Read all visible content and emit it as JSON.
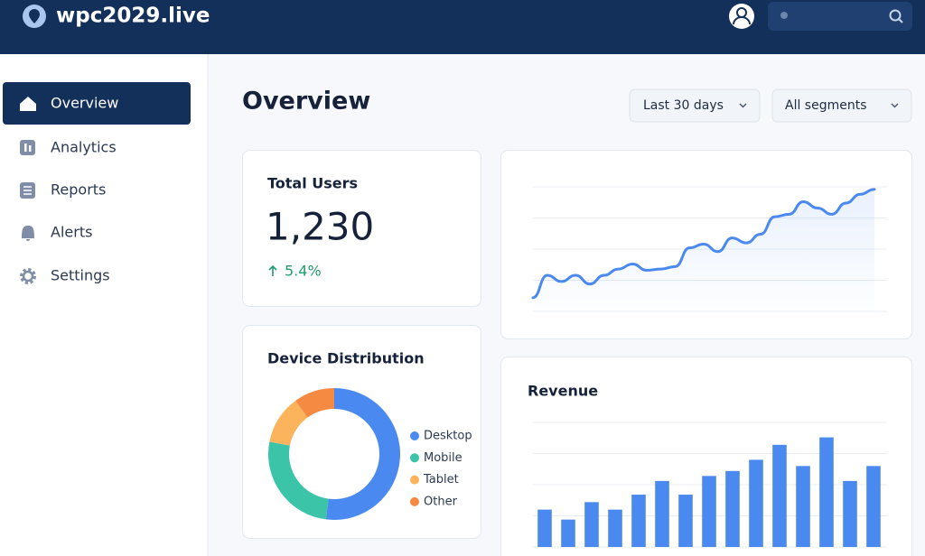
{
  "header": {
    "title": "wpc2029.live"
  },
  "nav": {
    "items": [
      {
        "label": "Overview"
      },
      {
        "label": "Analytics"
      },
      {
        "label": "Reports"
      },
      {
        "label": "Alerts"
      },
      {
        "label": "Settings"
      }
    ]
  },
  "page": {
    "title": "Overview"
  },
  "filters": [
    {
      "label": "Last 30 days"
    },
    {
      "label": "All segments"
    }
  ],
  "kpi": {
    "title": "Total Users",
    "value": "1,230",
    "change": "5.4%"
  },
  "trend": {
    "chart_data": {
      "type": "line",
      "color": "#4a8af0",
      "values": [
        11,
        29,
        24,
        29,
        22,
        29,
        34,
        38,
        33,
        34,
        36,
        51,
        54,
        48,
        59,
        55,
        62,
        76,
        78,
        88,
        83,
        78,
        87,
        94,
        98
      ],
      "ylim": [
        0,
        100
      ],
      "yticks": [
        0,
        25,
        50,
        75,
        100
      ],
      "grid": true
    }
  },
  "device": {
    "chart_data": {
      "type": "pie",
      "title": "Device Distribution",
      "series": [
        {
          "name": "Desktop",
          "color": "#4a8af0",
          "values": [
            52
          ]
        },
        {
          "name": "Mobile",
          "color": "#3cc4a8",
          "values": [
            26
          ]
        },
        {
          "name": "Tablet",
          "color": "#fbb45c",
          "values": [
            12
          ]
        },
        {
          "name": "Other",
          "color": "#f58a42",
          "values": [
            10
          ]
        }
      ]
    }
  },
  "revenue": {
    "chart_data": {
      "type": "bar",
      "title": "Revenue",
      "color": "#4a8af0",
      "values": [
        30,
        22,
        36,
        30,
        42,
        53,
        42,
        57,
        61,
        70,
        82,
        65,
        88,
        53,
        65
      ],
      "ylim": [
        0,
        100
      ],
      "yticks": [
        0,
        25,
        50,
        75,
        100
      ],
      "grid": true
    }
  }
}
